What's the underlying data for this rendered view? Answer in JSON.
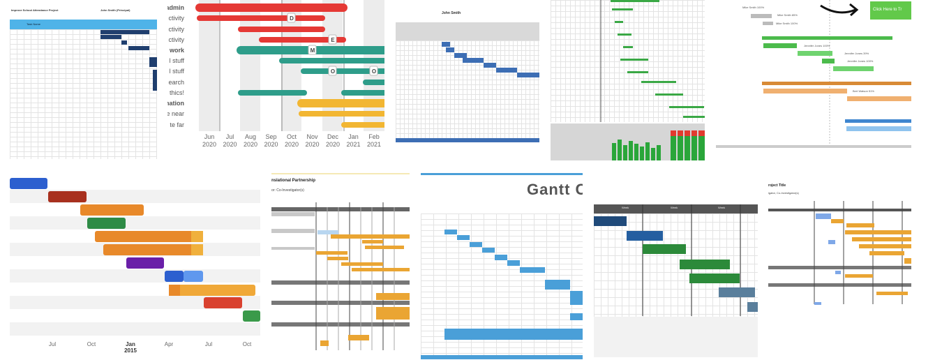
{
  "results": [
    {
      "title": "Improve School Attendance Project",
      "owner": "John Smith (Principal)",
      "header": "Task Name"
    },
    {
      "row_labels": [
        "admin",
        "ctivity",
        "ctivity",
        "ctivity",
        "l work",
        "l stuff",
        "l stuff",
        "earch",
        "thics!",
        "nation",
        "e near",
        "te far"
      ],
      "markers": [
        "D",
        "E",
        "M",
        "O",
        "O"
      ],
      "months": [
        "Jun",
        "Jul",
        "Aug",
        "Sep",
        "Oct",
        "Nov",
        "Dec",
        "Jan",
        "Feb"
      ],
      "years": [
        "2020",
        "2020",
        "2020",
        "2020",
        "2020",
        "2020",
        "2020",
        "2021",
        "2021"
      ]
    },
    {
      "owner": "John Smith"
    },
    {},
    {
      "button": "Click Here to Tr",
      "labels": [
        "Mike Smith 100%",
        "Mike Smith 85%",
        "Mike Smith 100%",
        "Jennifer Jones 100%",
        "Jennifer Jones 39%",
        "Jennifer Jones 100%",
        "Bert Watson 51%"
      ]
    },
    {
      "ticks": [
        "Jul",
        "Oct",
        "Jan",
        "Apr",
        "Jul",
        "Oct"
      ],
      "year": "2015"
    },
    {
      "title": "nslational Partnership",
      "subtitle": "or: Co-Investigator(s)"
    },
    {
      "title": "Gantt C"
    },
    {
      "week_labels": [
        "Week",
        "Week",
        "Week"
      ]
    },
    {
      "title": "roject Title",
      "subtitle": "igator, Co-Investigator(s)"
    }
  ],
  "colors": {
    "red": "#e53935",
    "teal": "#2e9d8a",
    "yellow": "#f2b632",
    "navy": "#1f3e6e",
    "green": "#43b649",
    "blue": "#4a9fd8",
    "orange": "#e8952e"
  }
}
